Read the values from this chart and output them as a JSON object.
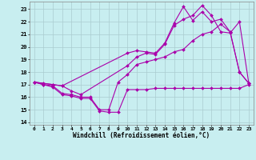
{
  "title": "",
  "xlabel": "Windchill (Refroidissement éolien,°C)",
  "ylabel": "",
  "bg_color": "#c8eef0",
  "grid_color": "#aaccd0",
  "line_color": "#aa00aa",
  "xlim": [
    -0.5,
    23.5
  ],
  "ylim": [
    13.8,
    23.6
  ],
  "yticks": [
    14,
    15,
    16,
    17,
    18,
    19,
    20,
    21,
    22,
    23
  ],
  "xticks": [
    0,
    1,
    2,
    3,
    4,
    5,
    6,
    7,
    8,
    9,
    10,
    11,
    12,
    13,
    14,
    15,
    16,
    17,
    18,
    19,
    20,
    21,
    22,
    23
  ],
  "series": [
    {
      "x": [
        0,
        1,
        2,
        3,
        4,
        5,
        6,
        7,
        8,
        9,
        10,
        11,
        12,
        13,
        14,
        15,
        16,
        17,
        18,
        19,
        20,
        21,
        22,
        23
      ],
      "y": [
        17.2,
        17.0,
        16.8,
        16.2,
        16.1,
        15.9,
        15.9,
        14.9,
        14.8,
        14.8,
        16.6,
        16.6,
        16.6,
        16.7,
        16.7,
        16.7,
        16.7,
        16.7,
        16.7,
        16.7,
        16.7,
        16.7,
        16.7,
        17.0
      ]
    },
    {
      "x": [
        0,
        1,
        2,
        3,
        4,
        5,
        6,
        7,
        8,
        9,
        10,
        11,
        12,
        13,
        14,
        15,
        16,
        17,
        18,
        19,
        20,
        21,
        22,
        23
      ],
      "y": [
        17.2,
        17.0,
        16.9,
        16.3,
        16.2,
        16.0,
        16.0,
        15.0,
        15.0,
        17.2,
        17.8,
        18.6,
        18.8,
        19.0,
        19.2,
        19.6,
        19.8,
        20.5,
        21.0,
        21.2,
        21.8,
        21.2,
        18.0,
        17.1
      ]
    },
    {
      "x": [
        0,
        1,
        2,
        3,
        10,
        11,
        12,
        13,
        14,
        15,
        16,
        17,
        18,
        19,
        20,
        21,
        22,
        23
      ],
      "y": [
        17.2,
        17.1,
        17.0,
        16.9,
        19.5,
        19.7,
        19.6,
        19.5,
        20.3,
        21.9,
        23.2,
        22.1,
        22.8,
        22.0,
        22.2,
        21.2,
        18.0,
        17.1
      ]
    },
    {
      "x": [
        0,
        2,
        3,
        4,
        5,
        10,
        11,
        12,
        13,
        14,
        15,
        16,
        17,
        18,
        19,
        20,
        21,
        22,
        23
      ],
      "y": [
        17.2,
        17.0,
        16.9,
        16.5,
        16.2,
        18.5,
        19.2,
        19.5,
        19.4,
        20.2,
        21.7,
        22.2,
        22.5,
        23.3,
        22.5,
        21.2,
        21.1,
        22.0,
        17.1
      ]
    }
  ]
}
